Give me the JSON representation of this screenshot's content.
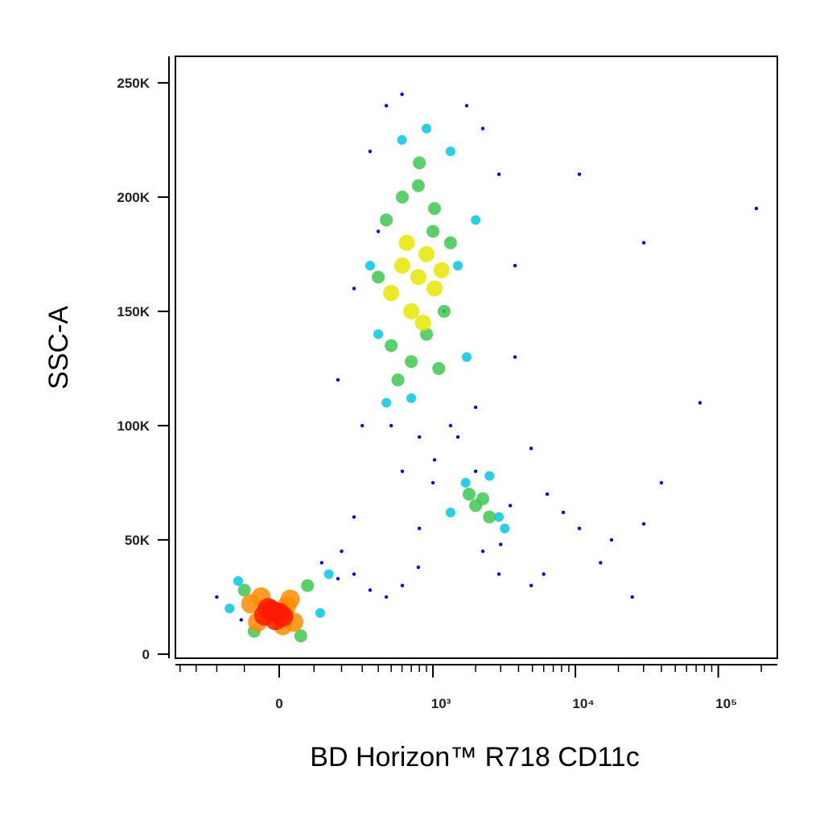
{
  "chart_data": {
    "type": "scatter",
    "x_label": "BD Horizon™ R718  CD11c",
    "y_label": "SSC-A",
    "x_scale": "biexponential",
    "xlim": [
      -434,
      259000
    ],
    "ylim": [
      -1800,
      261600
    ],
    "xticks": [
      0,
      {
        "value": 1000,
        "label": "10³"
      },
      {
        "value": 10000,
        "label": "10⁴"
      },
      {
        "value": 100000,
        "label": "10⁵"
      }
    ],
    "xminorticks": [
      -400,
      -300,
      -200,
      -100,
      100,
      200,
      300,
      400,
      500,
      600,
      700,
      800,
      900,
      2000,
      3000,
      4000,
      5000,
      6000,
      7000,
      8000,
      9000,
      20000,
      30000,
      40000,
      50000,
      60000,
      70000,
      80000,
      90000,
      200000
    ],
    "yticks": [
      0,
      {
        "value": 50000,
        "label": "50K"
      },
      {
        "value": 100000,
        "label": "100K"
      },
      {
        "value": 150000,
        "label": "150K"
      },
      {
        "value": 200000,
        "label": "200K"
      },
      {
        "value": 250000,
        "label": "250K"
      }
    ],
    "series": [
      {
        "color": "#0000ff",
        "x": [
          257,
          185,
          346,
          460,
          1730,
          2246,
          2914,
          3777,
          500,
          800,
          1332,
          2000,
          3777,
          4900,
          6350,
          8230,
          1026,
          603,
          125,
          185,
          257,
          346,
          460,
          603,
          787,
          2246,
          2914,
          4900,
          10660,
          17900,
          30100,
          74500,
          184700,
          30100,
          10660,
          -110,
          -200,
          200,
          257,
          800,
          1000,
          1500,
          2000,
          3000,
          3500,
          300,
          600,
          400,
          1200,
          15000,
          40000,
          6000,
          25000
        ],
        "y": [
          160000,
          120000,
          220000,
          240000,
          240000,
          230000,
          210000,
          170000,
          100000,
          95000,
          100000,
          108000,
          130000,
          90000,
          70000,
          62000,
          85000,
          80000,
          40000,
          33000,
          35000,
          28000,
          25000,
          30000,
          38000,
          45000,
          35000,
          30000,
          55000,
          50000,
          57000,
          110000,
          195000,
          180000,
          210000,
          15000,
          25000,
          45000,
          60000,
          55000,
          75000,
          95000,
          80000,
          48000,
          65000,
          100000,
          245000,
          185000,
          150000,
          40000,
          75000,
          35000,
          25000
        ]
      },
      {
        "color": "#00c8e8",
        "x": [
          346,
          400,
          1500,
          1730,
          600,
          900,
          1332,
          460,
          2000,
          700,
          1332,
          2914,
          1700,
          2500,
          3200,
          -150,
          120,
          -120,
          150
        ],
        "y": [
          170000,
          140000,
          170000,
          130000,
          225000,
          230000,
          220000,
          110000,
          190000,
          112000,
          62000,
          60000,
          75000,
          78000,
          55000,
          20000,
          18000,
          32000,
          35000
        ]
      },
      {
        "color": "#3cc850",
        "x": [
          460,
          603,
          787,
          1026,
          1332,
          500,
          700,
          900,
          1200,
          560,
          1100,
          400,
          800,
          1000,
          2000,
          2246,
          2500,
          1800,
          -100,
          80,
          -70,
          60
        ],
        "y": [
          190000,
          200000,
          205000,
          195000,
          180000,
          135000,
          128000,
          140000,
          150000,
          120000,
          125000,
          165000,
          215000,
          185000,
          65000,
          68000,
          60000,
          70000,
          28000,
          30000,
          10000,
          8000
        ]
      },
      {
        "color": "#e6e600",
        "x": [
          603,
          787,
          1026,
          700,
          900,
          500,
          1150,
          650,
          850
        ],
        "y": [
          170000,
          165000,
          160000,
          150000,
          175000,
          158000,
          168000,
          180000,
          145000
        ]
      },
      {
        "color": "#ff8c00",
        "x": [
          -80,
          -60,
          20,
          40,
          -50,
          10,
          30
        ],
        "y": [
          22000,
          14000,
          21000,
          14000,
          25000,
          12500,
          24000
        ]
      },
      {
        "color": "#ff1a00",
        "x": [
          -40,
          -20,
          -10,
          0,
          10,
          -30
        ],
        "y": [
          17000,
          19000,
          15000,
          18000,
          16500,
          20000
        ]
      }
    ]
  }
}
